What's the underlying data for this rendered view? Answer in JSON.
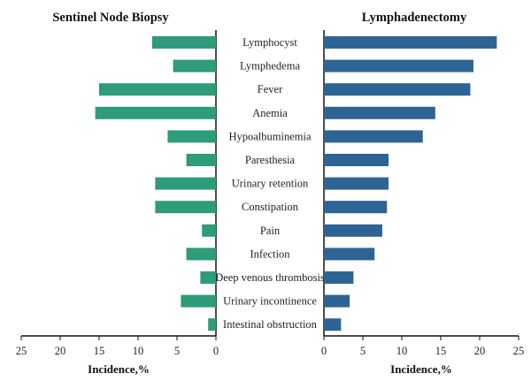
{
  "chart_data": {
    "type": "bar",
    "categories": [
      "Lymphocyst",
      "Lymphedema",
      "Fever",
      "Anemia",
      "Hypoalbuminemia",
      "Paresthesia",
      "Urinary retention",
      "Constipation",
      "Pain",
      "Infection",
      "Deep venous thrombosis",
      "Urinary incontinence",
      "Intestinal obstruction"
    ],
    "series": [
      {
        "name": "Sentinel Node Biopsy",
        "color": "#2e9b7a",
        "values": [
          8.2,
          5.5,
          15.0,
          15.5,
          6.2,
          3.8,
          7.8,
          7.8,
          1.8,
          3.8,
          2.0,
          4.5,
          1.0
        ]
      },
      {
        "name": "Lymphadenectomy",
        "color": "#2e6494",
        "values": [
          22.2,
          19.2,
          18.8,
          14.3,
          12.7,
          8.3,
          8.3,
          8.1,
          7.5,
          6.5,
          3.8,
          3.3,
          2.2
        ]
      }
    ],
    "xlabel_left": "Incidence,%",
    "xlabel_right": "Incidence,%",
    "xlim": [
      0,
      25
    ],
    "xticks": [
      0,
      5,
      10,
      15,
      20,
      25
    ],
    "left_axis_reversed": true,
    "grid": false
  }
}
